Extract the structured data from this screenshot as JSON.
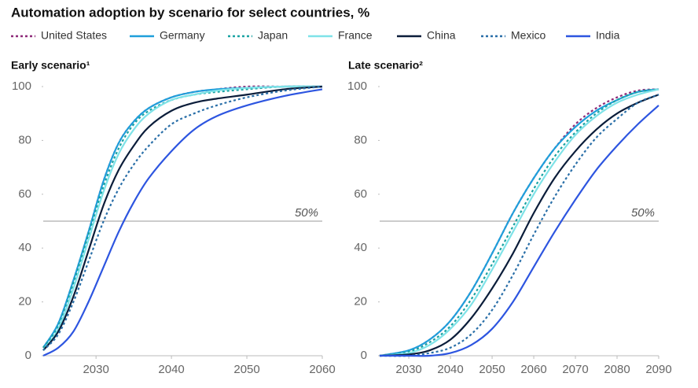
{
  "title": "Automation adoption by scenario for select countries, %",
  "chart_data": [
    {
      "type": "line",
      "title": "Early scenario¹",
      "x": [
        2023,
        2025,
        2027,
        2029,
        2031,
        2033,
        2035,
        2037,
        2040,
        2043,
        2046,
        2050,
        2055,
        2060
      ],
      "xlim": [
        2023,
        2060
      ],
      "xticks": [
        2030,
        2040,
        2050,
        2060
      ],
      "ylim": [
        0,
        100
      ],
      "yticks": [
        0,
        20,
        40,
        60,
        80,
        100
      ],
      "reference_line": {
        "value": 50,
        "label": "50%"
      },
      "series": [
        {
          "name": "United States",
          "color": "#8e2a78",
          "dashed": true,
          "values": [
            3,
            12,
            28,
            46,
            65,
            79,
            87,
            92,
            96,
            98,
            99,
            100,
            100,
            100
          ]
        },
        {
          "name": "Germany",
          "color": "#1f9fdb",
          "dashed": false,
          "values": [
            3,
            12,
            28,
            46,
            65,
            79,
            87,
            92,
            96,
            98,
            99,
            99.5,
            100,
            100
          ]
        },
        {
          "name": "Japan",
          "color": "#1aa3a3",
          "dashed": true,
          "values": [
            3,
            11,
            27,
            45,
            63,
            77,
            86,
            91,
            95,
            97,
            98,
            99,
            100,
            100
          ]
        },
        {
          "name": "France",
          "color": "#7fe3e8",
          "dashed": false,
          "values": [
            2,
            10,
            25,
            43,
            61,
            75,
            84,
            90,
            95,
            97,
            98.5,
            99.5,
            100,
            100
          ]
        },
        {
          "name": "China",
          "color": "#0b1d3a",
          "dashed": false,
          "values": [
            2,
            9,
            22,
            39,
            56,
            69,
            78,
            85,
            91,
            94,
            95.5,
            97,
            99,
            100
          ]
        },
        {
          "name": "Mexico",
          "color": "#2a6fa8",
          "dashed": true,
          "values": [
            2,
            8,
            20,
            35,
            50,
            62,
            71,
            78,
            86,
            90,
            93,
            96,
            98.5,
            100
          ]
        },
        {
          "name": "India",
          "color": "#2d55e0",
          "dashed": false,
          "values": [
            0,
            3,
            9,
            20,
            33,
            46,
            57,
            66,
            76,
            84,
            89,
            93,
            96.5,
            99
          ]
        }
      ]
    },
    {
      "type": "line",
      "title": "Late scenario²",
      "x": [
        2023,
        2030,
        2035,
        2040,
        2045,
        2050,
        2055,
        2060,
        2065,
        2070,
        2075,
        2080,
        2085,
        2090
      ],
      "xlim": [
        2023,
        2090
      ],
      "xticks": [
        2030,
        2040,
        2050,
        2060,
        2070,
        2080,
        2090
      ],
      "ylim": [
        0,
        100
      ],
      "yticks": [
        0,
        20,
        40,
        60,
        80,
        100
      ],
      "reference_line": {
        "value": 50,
        "label": "50%"
      },
      "series": [
        {
          "name": "United States",
          "color": "#8e2a78",
          "dashed": true,
          "values": [
            0,
            2,
            6,
            13,
            24,
            38,
            53,
            66,
            77,
            86,
            92,
            96,
            98.5,
            99
          ]
        },
        {
          "name": "Germany",
          "color": "#1f9fdb",
          "dashed": false,
          "values": [
            0,
            2,
            6,
            13,
            24,
            38,
            53,
            66,
            77,
            85,
            91,
            95,
            98,
            99
          ]
        },
        {
          "name": "Japan",
          "color": "#1aa3a3",
          "dashed": true,
          "values": [
            0,
            1.5,
            5,
            11,
            21,
            34,
            48,
            62,
            74,
            83,
            90,
            95,
            98,
            99
          ]
        },
        {
          "name": "France",
          "color": "#7fe3e8",
          "dashed": false,
          "values": [
            0,
            1,
            4,
            10,
            19,
            32,
            46,
            60,
            72,
            82,
            89,
            94,
            97,
            99
          ]
        },
        {
          "name": "China",
          "color": "#0b1d3a",
          "dashed": false,
          "values": [
            0,
            0.5,
            2,
            6,
            14,
            25,
            38,
            53,
            66,
            76,
            84,
            90,
            94,
            97
          ]
        },
        {
          "name": "Mexico",
          "color": "#2a6fa8",
          "dashed": true,
          "values": [
            0,
            0,
            1,
            3,
            8,
            17,
            30,
            45,
            59,
            71,
            81,
            88,
            94,
            97
          ]
        },
        {
          "name": "India",
          "color": "#2d55e0",
          "dashed": false,
          "values": [
            0,
            0,
            0,
            1,
            4,
            10,
            20,
            33,
            46,
            58,
            69,
            78,
            86,
            93
          ]
        }
      ]
    }
  ]
}
